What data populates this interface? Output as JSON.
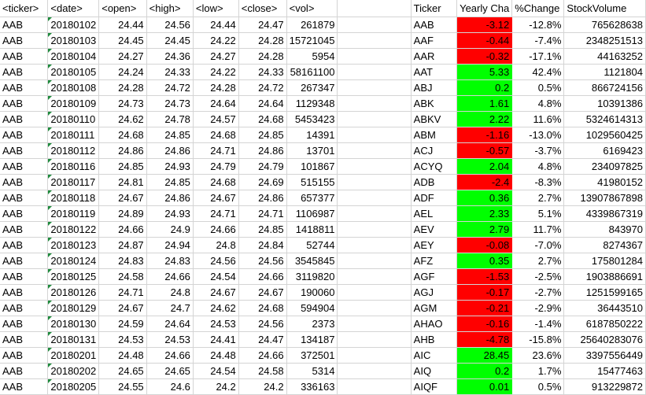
{
  "headers": {
    "left": [
      "<ticker>",
      "<date>",
      "<open>",
      "<high>",
      "<low>",
      "<close>",
      "<vol>"
    ],
    "right": [
      "Ticker",
      "Yearly Cha",
      "%Change",
      "StockVolume"
    ]
  },
  "rows": [
    {
      "ticker": "AAB",
      "date": "20180102",
      "open": "24.44",
      "high": "24.56",
      "low": "24.44",
      "close": "24.47",
      "vol": "261879"
    },
    {
      "ticker": "AAB",
      "date": "20180103",
      "open": "24.45",
      "high": "24.45",
      "low": "24.22",
      "close": "24.28",
      "vol": "15721045"
    },
    {
      "ticker": "AAB",
      "date": "20180104",
      "open": "24.27",
      "high": "24.36",
      "low": "24.27",
      "close": "24.28",
      "vol": "5954"
    },
    {
      "ticker": "AAB",
      "date": "20180105",
      "open": "24.24",
      "high": "24.33",
      "low": "24.22",
      "close": "24.33",
      "vol": "58161100"
    },
    {
      "ticker": "AAB",
      "date": "20180108",
      "open": "24.28",
      "high": "24.72",
      "low": "24.28",
      "close": "24.72",
      "vol": "267347"
    },
    {
      "ticker": "AAB",
      "date": "20180109",
      "open": "24.73",
      "high": "24.73",
      "low": "24.64",
      "close": "24.64",
      "vol": "1129348"
    },
    {
      "ticker": "AAB",
      "date": "20180110",
      "open": "24.62",
      "high": "24.78",
      "low": "24.57",
      "close": "24.68",
      "vol": "5453423"
    },
    {
      "ticker": "AAB",
      "date": "20180111",
      "open": "24.68",
      "high": "24.85",
      "low": "24.68",
      "close": "24.85",
      "vol": "14391"
    },
    {
      "ticker": "AAB",
      "date": "20180112",
      "open": "24.86",
      "high": "24.86",
      "low": "24.71",
      "close": "24.86",
      "vol": "13701"
    },
    {
      "ticker": "AAB",
      "date": "20180116",
      "open": "24.85",
      "high": "24.93",
      "low": "24.79",
      "close": "24.79",
      "vol": "101867"
    },
    {
      "ticker": "AAB",
      "date": "20180117",
      "open": "24.81",
      "high": "24.85",
      "low": "24.68",
      "close": "24.69",
      "vol": "515155"
    },
    {
      "ticker": "AAB",
      "date": "20180118",
      "open": "24.67",
      "high": "24.86",
      "low": "24.67",
      "close": "24.86",
      "vol": "657377"
    },
    {
      "ticker": "AAB",
      "date": "20180119",
      "open": "24.89",
      "high": "24.93",
      "low": "24.71",
      "close": "24.71",
      "vol": "1106987"
    },
    {
      "ticker": "AAB",
      "date": "20180122",
      "open": "24.66",
      "high": "24.9",
      "low": "24.66",
      "close": "24.85",
      "vol": "1418811"
    },
    {
      "ticker": "AAB",
      "date": "20180123",
      "open": "24.87",
      "high": "24.94",
      "low": "24.8",
      "close": "24.84",
      "vol": "52744"
    },
    {
      "ticker": "AAB",
      "date": "20180124",
      "open": "24.83",
      "high": "24.83",
      "low": "24.56",
      "close": "24.56",
      "vol": "3545845"
    },
    {
      "ticker": "AAB",
      "date": "20180125",
      "open": "24.58",
      "high": "24.66",
      "low": "24.54",
      "close": "24.66",
      "vol": "3119820"
    },
    {
      "ticker": "AAB",
      "date": "20180126",
      "open": "24.71",
      "high": "24.8",
      "low": "24.67",
      "close": "24.67",
      "vol": "190060"
    },
    {
      "ticker": "AAB",
      "date": "20180129",
      "open": "24.67",
      "high": "24.7",
      "low": "24.62",
      "close": "24.68",
      "vol": "594904"
    },
    {
      "ticker": "AAB",
      "date": "20180130",
      "open": "24.59",
      "high": "24.64",
      "low": "24.53",
      "close": "24.56",
      "vol": "2373"
    },
    {
      "ticker": "AAB",
      "date": "20180131",
      "open": "24.53",
      "high": "24.53",
      "low": "24.41",
      "close": "24.47",
      "vol": "134187"
    },
    {
      "ticker": "AAB",
      "date": "20180201",
      "open": "24.48",
      "high": "24.66",
      "low": "24.48",
      "close": "24.66",
      "vol": "372501"
    },
    {
      "ticker": "AAB",
      "date": "20180202",
      "open": "24.65",
      "high": "24.65",
      "low": "24.54",
      "close": "24.58",
      "vol": "5314"
    },
    {
      "ticker": "AAB",
      "date": "20180205",
      "open": "24.55",
      "high": "24.6",
      "low": "24.2",
      "close": "24.2",
      "vol": "336163"
    }
  ],
  "summary": [
    {
      "ticker": "AAB",
      "change": "-3.12",
      "pct": "-12.8%",
      "volume": "765628638",
      "status": "negative"
    },
    {
      "ticker": "AAF",
      "change": "-0.44",
      "pct": "-7.4%",
      "volume": "2348251513",
      "status": "negative"
    },
    {
      "ticker": "AAR",
      "change": "-0.32",
      "pct": "-17.1%",
      "volume": "44163252",
      "status": "negative"
    },
    {
      "ticker": "AAT",
      "change": "5.33",
      "pct": "42.4%",
      "volume": "1121804",
      "status": "positive"
    },
    {
      "ticker": "ABJ",
      "change": "0.2",
      "pct": "0.5%",
      "volume": "866724156",
      "status": "positive"
    },
    {
      "ticker": "ABK",
      "change": "1.61",
      "pct": "4.8%",
      "volume": "10391386",
      "status": "positive"
    },
    {
      "ticker": "ABKV",
      "change": "2.22",
      "pct": "11.6%",
      "volume": "5324614313",
      "status": "positive"
    },
    {
      "ticker": "ABM",
      "change": "-1.16",
      "pct": "-13.0%",
      "volume": "1029560425",
      "status": "negative"
    },
    {
      "ticker": "ACJ",
      "change": "-0.57",
      "pct": "-3.7%",
      "volume": "6169423",
      "status": "negative"
    },
    {
      "ticker": "ACYQ",
      "change": "2.04",
      "pct": "4.8%",
      "volume": "234097825",
      "status": "positive"
    },
    {
      "ticker": "ADB",
      "change": "-2.4",
      "pct": "-8.3%",
      "volume": "41980152",
      "status": "negative"
    },
    {
      "ticker": "ADF",
      "change": "0.36",
      "pct": "2.7%",
      "volume": "13907867898",
      "status": "positive"
    },
    {
      "ticker": "AEL",
      "change": "2.33",
      "pct": "5.1%",
      "volume": "4339867319",
      "status": "positive"
    },
    {
      "ticker": "AEV",
      "change": "2.79",
      "pct": "11.7%",
      "volume": "843970",
      "status": "positive"
    },
    {
      "ticker": "AEY",
      "change": "-0.08",
      "pct": "-7.0%",
      "volume": "8274367",
      "status": "negative"
    },
    {
      "ticker": "AFZ",
      "change": "0.35",
      "pct": "2.7%",
      "volume": "175801284",
      "status": "positive"
    },
    {
      "ticker": "AGF",
      "change": "-1.53",
      "pct": "-2.5%",
      "volume": "1903886691",
      "status": "negative"
    },
    {
      "ticker": "AGJ",
      "change": "-0.17",
      "pct": "-2.7%",
      "volume": "1251599165",
      "status": "negative"
    },
    {
      "ticker": "AGM",
      "change": "-0.21",
      "pct": "-2.9%",
      "volume": "36443510",
      "status": "negative"
    },
    {
      "ticker": "AHAO",
      "change": "-0.16",
      "pct": "-1.4%",
      "volume": "6187850222",
      "status": "negative"
    },
    {
      "ticker": "AHB",
      "change": "-4.78",
      "pct": "-15.8%",
      "volume": "25640283076",
      "status": "negative"
    },
    {
      "ticker": "AIC",
      "change": "28.45",
      "pct": "23.6%",
      "volume": "3397556449",
      "status": "positive"
    },
    {
      "ticker": "AIQ",
      "change": "0.2",
      "pct": "1.7%",
      "volume": "15477463",
      "status": "positive"
    },
    {
      "ticker": "AIQF",
      "change": "0.01",
      "pct": "0.5%",
      "volume": "913229872",
      "status": "positive"
    }
  ],
  "colors": {
    "negative": "#ff0000",
    "positive": "#00ff00",
    "gridline": "#d4d4d4",
    "error_indicator": "#1e8a3c"
  }
}
